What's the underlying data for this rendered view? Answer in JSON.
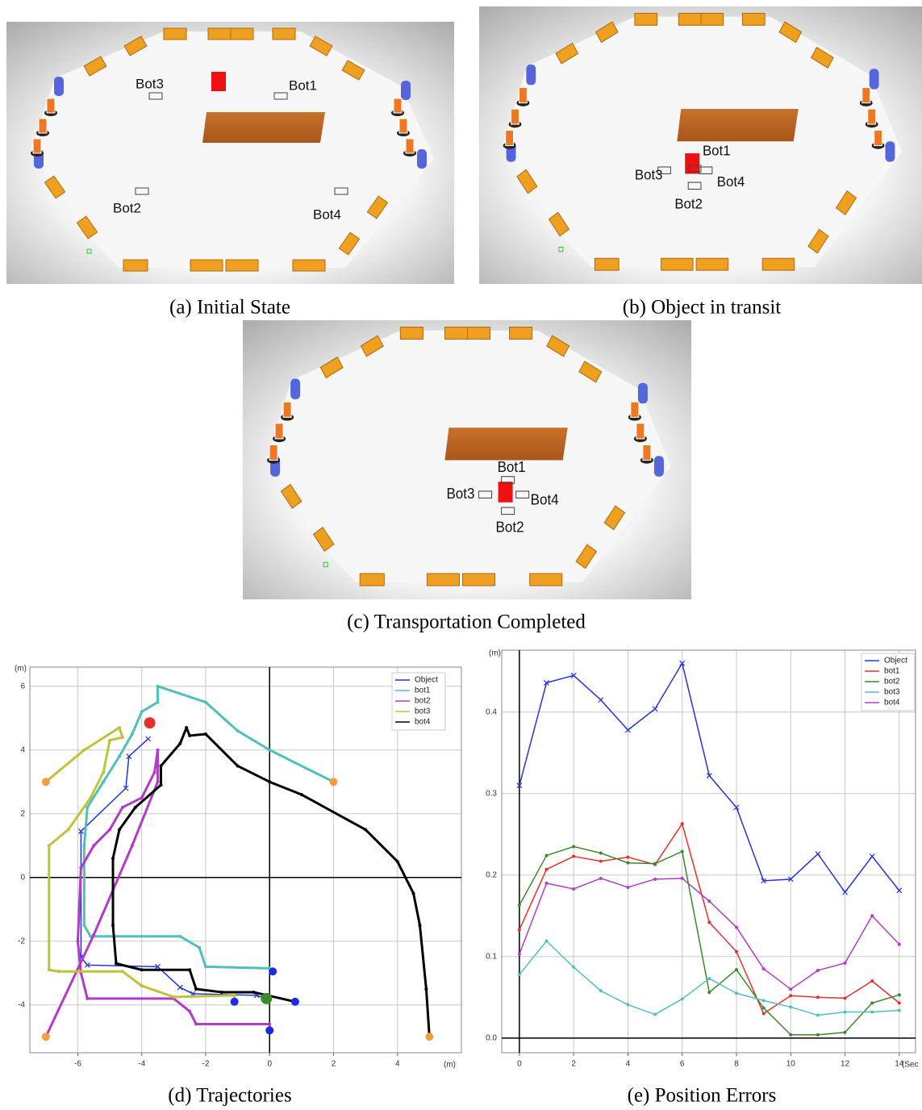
{
  "panels": [
    {
      "caption": "(a) Initial State",
      "labels": [
        "Bot3",
        "Bot1",
        "Bot2",
        "Bot4"
      ]
    },
    {
      "caption": "(b) Object in transit",
      "labels": [
        "Bot1",
        "Bot3",
        "Bot4",
        "Bot2"
      ]
    },
    {
      "caption": "(c) Transportation Completed",
      "labels": [
        "Bot1",
        "Bot3",
        "Bot4",
        "Bot2"
      ]
    }
  ],
  "chart_data": [
    {
      "type": "line",
      "caption": "(d) Trajectories",
      "xlabel": "(m)",
      "ylabel": "(m)",
      "xlim": [
        -7.5,
        6
      ],
      "ylim": [
        -5.5,
        6.6
      ],
      "xticks": [
        -6,
        -4,
        -2,
        0,
        2,
        4
      ],
      "yticks": [
        -4,
        -2,
        0,
        2,
        4,
        6
      ],
      "grid": true,
      "series": [
        {
          "name": "Object",
          "color": "#2233dd",
          "x": [
            -3.8,
            -4.4,
            -4.5,
            -5.9,
            -5.9,
            -5.7,
            -3.5,
            -2.8,
            -2.4,
            -0.4,
            -0.1
          ],
          "values": [
            4.35,
            3.8,
            2.8,
            1.45,
            -2.5,
            -2.75,
            -2.8,
            -3.45,
            -3.65,
            -3.7,
            -3.8
          ]
        },
        {
          "name": "bot1",
          "color": "#4fc0bc",
          "x": [
            2,
            0,
            -1,
            -2,
            -3.5,
            -3.5,
            -4,
            -4.3,
            -4.7,
            -5.2,
            -5.7,
            -5.8,
            -5.8,
            -5.6,
            -2.8,
            -2.2,
            -2,
            0
          ],
          "values": [
            3,
            4,
            4.6,
            5.5,
            6,
            5.5,
            5.2,
            4.5,
            3.8,
            3,
            2.2,
            1,
            -1.5,
            -1.85,
            -1.85,
            -2.2,
            -2.8,
            -2.85
          ]
        },
        {
          "name": "bot2",
          "color": "#b23bc8",
          "x": [
            -7,
            -5.5,
            -4.3,
            -3.5,
            -3.5,
            -3.6,
            -4,
            -4.6,
            -5,
            -5.5,
            -5.9,
            -6,
            -5.9,
            -5.7,
            -3,
            -2.5,
            -2.3,
            0,
            0
          ],
          "values": [
            -5,
            -1.8,
            1,
            3,
            4,
            3.3,
            2.5,
            2.2,
            1.5,
            1,
            0.3,
            -2,
            -3,
            -3.8,
            -3.8,
            -4.2,
            -4.6,
            -4.6,
            -4.8
          ]
        },
        {
          "name": "bot3",
          "color": "#c2c23a",
          "x": [
            -7,
            -5.8,
            -4.7,
            -4.6,
            -5,
            -5.2,
            -5.6,
            -6.3,
            -6.9,
            -6.9,
            -6.6,
            -4.6,
            -4,
            -3,
            -1.1,
            -1.1
          ],
          "values": [
            3,
            4,
            4.7,
            4.4,
            4.3,
            3.3,
            2.5,
            1.5,
            1,
            -2.9,
            -2.95,
            -2.95,
            -3.4,
            -3.75,
            -3.7,
            -3.9
          ]
        },
        {
          "name": "bot4",
          "color": "#000000",
          "x": [
            5,
            4.9,
            4.7,
            4.5,
            4,
            3,
            1,
            0,
            -1,
            -2,
            -2.5,
            -2.6,
            -2.8,
            -3.4,
            -3.4,
            -4.2,
            -4.7,
            -4.9,
            -4.9,
            -4.8,
            -4,
            -2.5,
            -2.3,
            -1.5,
            -0.5,
            0.8
          ],
          "values": [
            -5,
            -3.5,
            -1.5,
            -0.5,
            0.5,
            1.5,
            2.6,
            3,
            3.5,
            4.5,
            4.45,
            4.7,
            4.2,
            3.5,
            2.9,
            2.2,
            1.5,
            0.6,
            -1.5,
            -2.7,
            -2.9,
            -2.9,
            -3.5,
            -3.6,
            -3.6,
            -3.9
          ]
        }
      ],
      "markers": [
        {
          "color": "#f0a040",
          "x": [
            -7,
            2,
            -7,
            5
          ],
          "values": [
            3,
            3,
            -5,
            -5
          ]
        },
        {
          "color": "#1a2be8",
          "x": [
            0.1,
            0.8,
            -1.1,
            0
          ],
          "values": [
            -2.95,
            -3.9,
            -3.9,
            -4.8
          ]
        },
        {
          "color": "#e8302a",
          "x": [
            -3.75
          ],
          "values": [
            4.85
          ]
        },
        {
          "color": "#3a8a2a",
          "x": [
            -0.1
          ],
          "values": [
            -3.8
          ]
        }
      ]
    },
    {
      "type": "line",
      "caption": "(e) Position Errors",
      "xlabel": "(Sec",
      "ylabel": "(m)",
      "xlim": [
        -0.65,
        14.6
      ],
      "ylim": [
        -0.018,
        0.476
      ],
      "xticks": [
        0,
        2,
        4,
        6,
        8,
        10,
        12,
        14
      ],
      "yticks": [
        {
          "value": 0,
          "label": "0.0"
        },
        0.1,
        0.2,
        0.3,
        0.4
      ],
      "grid": true,
      "series": [
        {
          "name": "Object",
          "color": "#2233dd",
          "x": [
            0,
            1,
            2,
            3,
            4,
            5,
            6,
            7,
            8,
            9,
            10,
            11,
            12,
            13,
            14
          ],
          "values": [
            0.31,
            0.436,
            0.445,
            0.415,
            0.378,
            0.404,
            0.46,
            0.322,
            0.283,
            0.193,
            0.195,
            0.226,
            0.179,
            0.223,
            0.181
          ]
        },
        {
          "name": "bot1",
          "color": "#e8302a",
          "x": [
            0,
            1,
            2,
            3,
            4,
            5,
            6,
            7,
            8,
            9,
            10,
            11,
            12,
            13,
            14
          ],
          "values": [
            0.133,
            0.207,
            0.223,
            0.217,
            0.222,
            0.213,
            0.263,
            0.142,
            0.106,
            0.03,
            0.052,
            0.05,
            0.049,
            0.07,
            0.043
          ]
        },
        {
          "name": "bot2",
          "color": "#3a8a2a",
          "x": [
            0,
            1,
            2,
            3,
            4,
            5,
            6,
            7,
            8,
            9,
            10,
            11,
            12,
            13,
            14
          ],
          "values": [
            0.163,
            0.224,
            0.235,
            0.227,
            0.215,
            0.214,
            0.229,
            0.056,
            0.084,
            0.037,
            0.004,
            0.004,
            0.007,
            0.043,
            0.053
          ]
        },
        {
          "name": "bot3",
          "color": "#4fc0bc",
          "x": [
            0,
            1,
            2,
            3,
            4,
            5,
            6,
            7,
            8,
            9,
            10,
            11,
            12,
            13,
            14
          ],
          "values": [
            0.078,
            0.119,
            0.087,
            0.058,
            0.041,
            0.029,
            0.048,
            0.073,
            0.055,
            0.046,
            0.038,
            0.028,
            0.032,
            0.032,
            0.034
          ]
        },
        {
          "name": "bot4",
          "color": "#b23bc8",
          "x": [
            0,
            1,
            2,
            3,
            4,
            5,
            6,
            7,
            8,
            9,
            10,
            11,
            12,
            13,
            14
          ],
          "values": [
            0.103,
            0.19,
            0.183,
            0.196,
            0.185,
            0.195,
            0.196,
            0.168,
            0.136,
            0.085,
            0.06,
            0.083,
            0.092,
            0.15,
            0.115
          ]
        }
      ]
    }
  ]
}
